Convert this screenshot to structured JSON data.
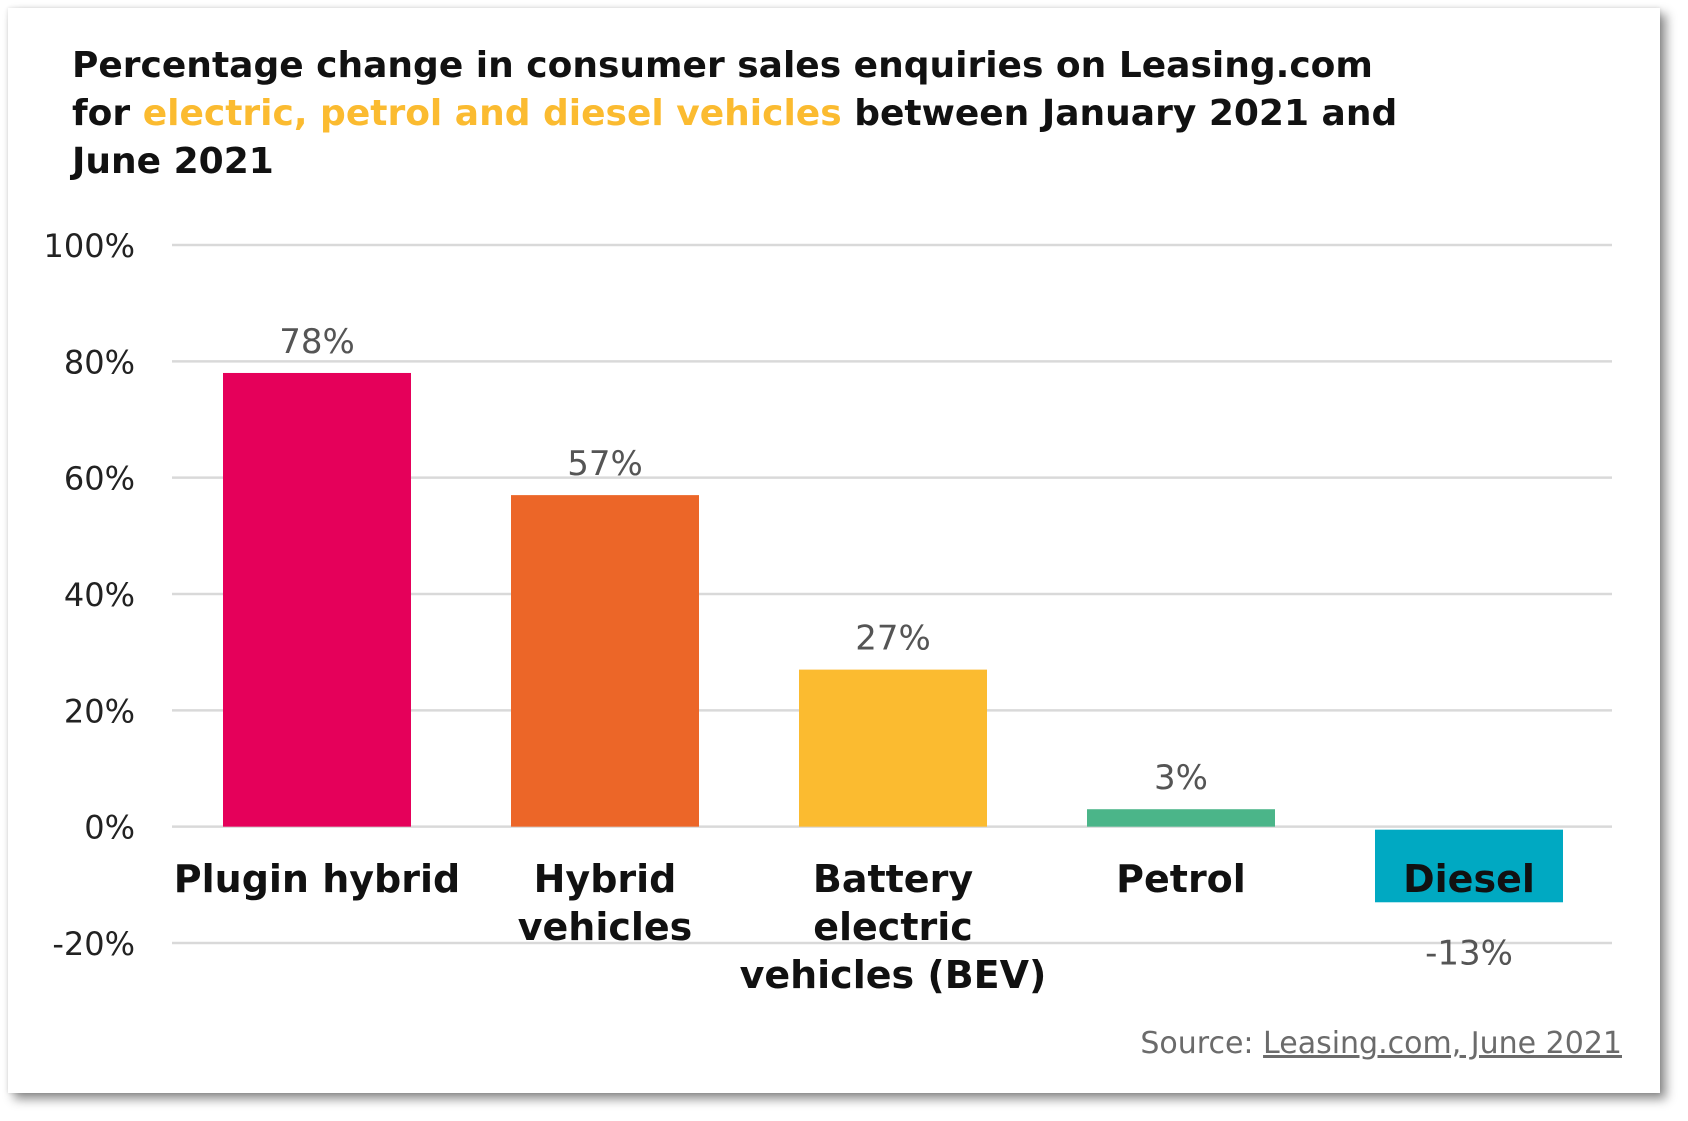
{
  "title": {
    "line1": "Percentage change in consumer sales enquiries on Leasing.com",
    "line2_prefix": "for ",
    "line2_highlight": "electric, petrol and diesel vehicles",
    "line2_suffix": " between January 2021 and",
    "line3": "June 2021"
  },
  "colors": {
    "highlight": "#fbbb30",
    "grid": "#d9d9d9",
    "text": "#111111",
    "muted": "#555555"
  },
  "source": {
    "prefix": "Source: ",
    "link": "Leasing.com, June 2021"
  },
  "chart_data": {
    "type": "bar",
    "categories": [
      [
        "Plugin hybrid"
      ],
      [
        "Hybrid",
        "vehicles"
      ],
      [
        "Battery",
        "electric",
        "vehicles (BEV)"
      ],
      [
        "Petrol"
      ],
      [
        "Diesel"
      ]
    ],
    "values": [
      78,
      57,
      27,
      3,
      -13
    ],
    "value_labels": [
      "78%",
      "57%",
      "27%",
      "3%",
      "-13%"
    ],
    "bar_colors": [
      "#e5005a",
      "#ec6628",
      "#fbbb30",
      "#4bb589",
      "#00a9c2"
    ],
    "ylim": [
      -20,
      100
    ],
    "yticks": [
      100,
      80,
      60,
      40,
      20,
      0,
      -20
    ],
    "ytick_labels": [
      "100%",
      "80%",
      "60%",
      "40%",
      "20%",
      "0%",
      "-20%"
    ],
    "grid": true,
    "xlabel": "",
    "ylabel": ""
  }
}
